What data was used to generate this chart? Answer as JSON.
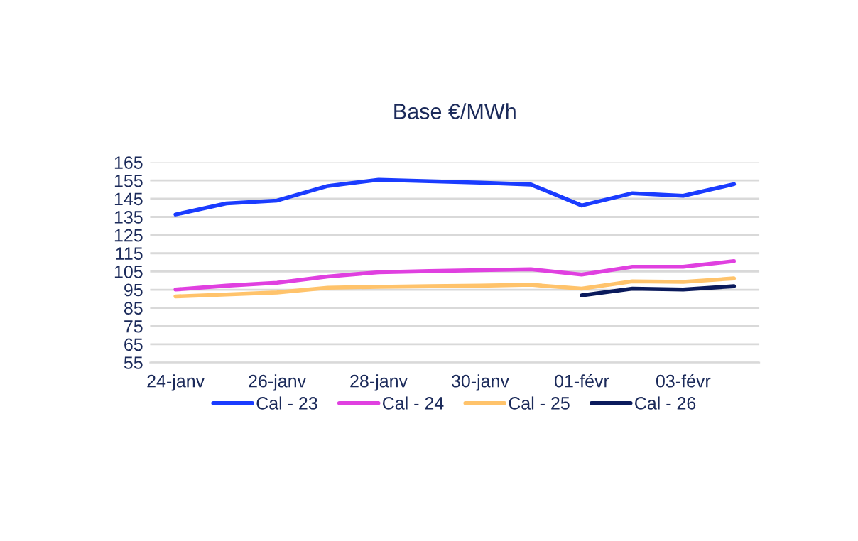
{
  "chart_data": {
    "type": "line",
    "title": "Base €/MWh",
    "categories": [
      "24-janv",
      null,
      "26-janv",
      null,
      "28-janv",
      null,
      "30-janv",
      null,
      "01-févr",
      null,
      "03-févr",
      null
    ],
    "series": [
      {
        "name": "Cal - 23",
        "color": "#1a3cff",
        "values": [
          136.3,
          142.4,
          144.0,
          152.0,
          155.4,
          154.6,
          153.8,
          152.8,
          141.3,
          148.0,
          146.6,
          153.0
        ]
      },
      {
        "name": "Cal - 24",
        "color": "#e040e0",
        "values": [
          95.1,
          97.2,
          98.8,
          102.2,
          104.6,
          105.2,
          105.7,
          106.2,
          103.3,
          107.6,
          107.6,
          110.7
        ]
      },
      {
        "name": "Cal - 25",
        "color": "#ffc36b",
        "values": [
          91.3,
          92.4,
          93.5,
          96.1,
          96.6,
          96.9,
          97.2,
          97.7,
          95.6,
          99.6,
          99.3,
          101.2
        ]
      },
      {
        "name": "Cal - 26",
        "color": "#0a1a5c",
        "values": [
          null,
          null,
          null,
          null,
          null,
          null,
          null,
          null,
          91.9,
          95.6,
          95.1,
          96.9
        ]
      }
    ],
    "ylim": [
      55,
      165
    ],
    "yticks": [
      55,
      65,
      75,
      85,
      95,
      105,
      115,
      125,
      135,
      145,
      155,
      165
    ],
    "grid": "y",
    "legend": "bottom"
  }
}
